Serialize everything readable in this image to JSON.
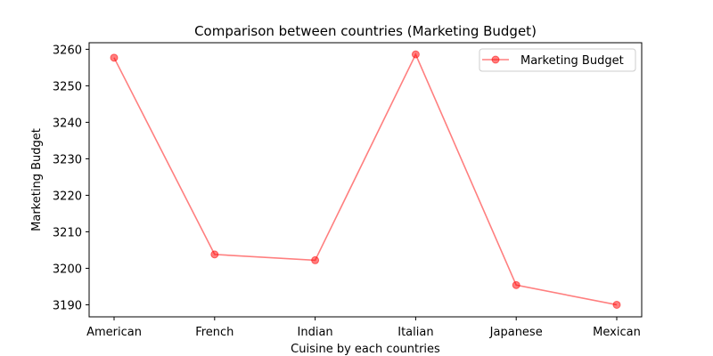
{
  "chart_data": {
    "type": "line",
    "title": "Comparison between countries (Marketing Budget)",
    "xlabel": "Cuisine by each countries",
    "ylabel": "Marketing Budget",
    "categories": [
      "American",
      "French",
      "Indian",
      "Italian",
      "Japanese",
      "Mexican"
    ],
    "series": [
      {
        "name": "Marketing Budget",
        "values": [
          3257.7,
          3203.8,
          3202.2,
          3258.6,
          3195.4,
          3190.0
        ],
        "color": "#ff0000"
      }
    ],
    "ylim": [
      3186.7,
      3261.8
    ],
    "yticks": [
      "3190",
      "3200",
      "3210",
      "3220",
      "3230",
      "3240",
      "3250",
      "3260"
    ],
    "legend_position": "top-right",
    "grid": false
  }
}
